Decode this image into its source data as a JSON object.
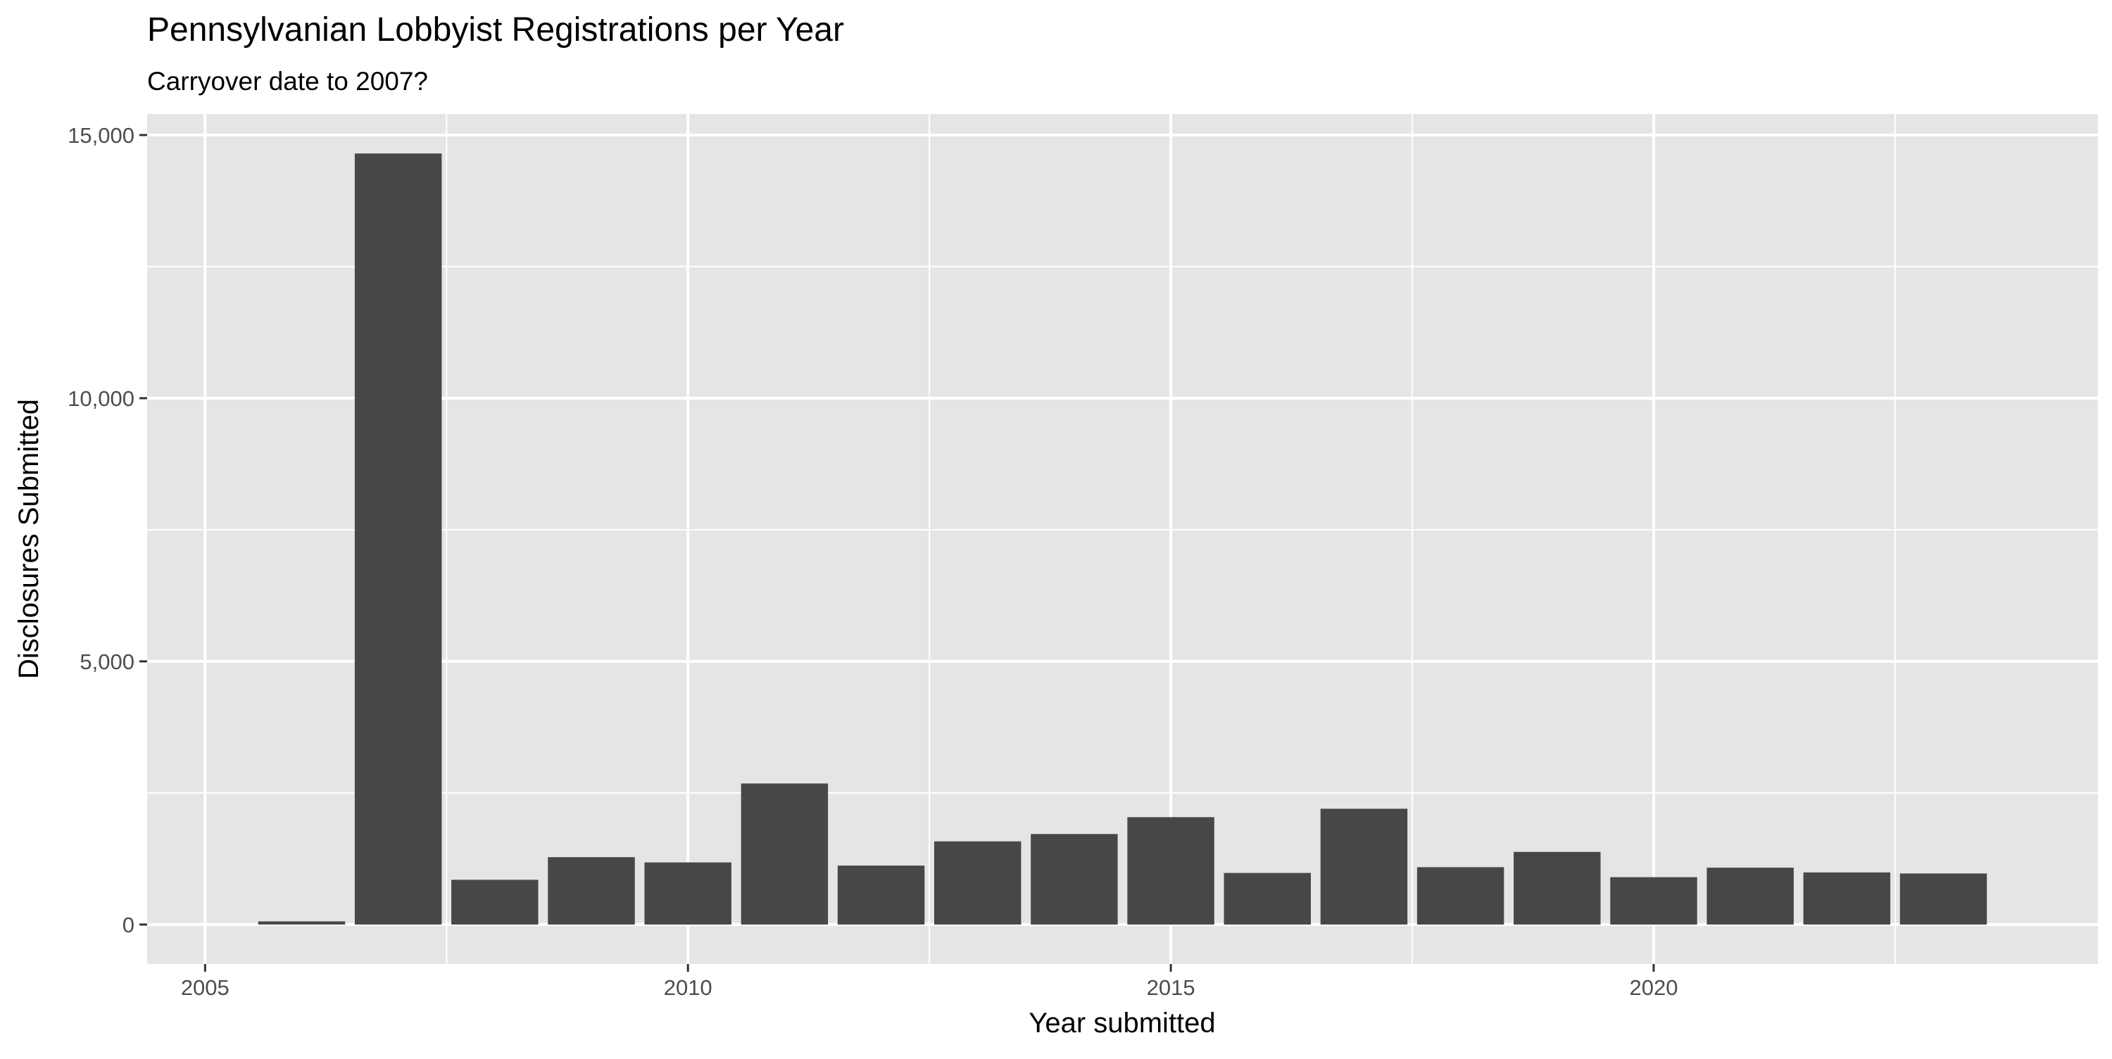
{
  "chart_data": {
    "type": "bar",
    "title": "Pennsylvanian Lobbyist Registrations per Year",
    "subtitle": "Carryover date to 2007?",
    "xlabel": "Year submitted",
    "ylabel": "Disclosures Submitted",
    "x": [
      2006,
      2007,
      2008,
      2009,
      2010,
      2011,
      2012,
      2013,
      2014,
      2015,
      2016,
      2017,
      2018,
      2019,
      2020,
      2021,
      2022,
      2023
    ],
    "values": [
      60,
      14650,
      850,
      1280,
      1180,
      2680,
      1120,
      1580,
      1720,
      2040,
      980,
      2200,
      1090,
      1380,
      900,
      1080,
      990,
      970
    ],
    "xlim": [
      2004.4,
      2024.6
    ],
    "ylim": [
      -750,
      15400
    ],
    "x_ticks": [
      2005,
      2010,
      2015,
      2020
    ],
    "x_tick_labels": [
      "2005",
      "2010",
      "2015",
      "2020"
    ],
    "y_ticks": [
      0,
      5000,
      10000,
      15000
    ],
    "y_tick_labels": [
      "0",
      "5,000",
      "10,000",
      "15,000"
    ],
    "bar_color": "#474747",
    "panel_background": "#e5e5e5",
    "grid_color": "#ffffff",
    "grid": true,
    "legend": "none"
  }
}
